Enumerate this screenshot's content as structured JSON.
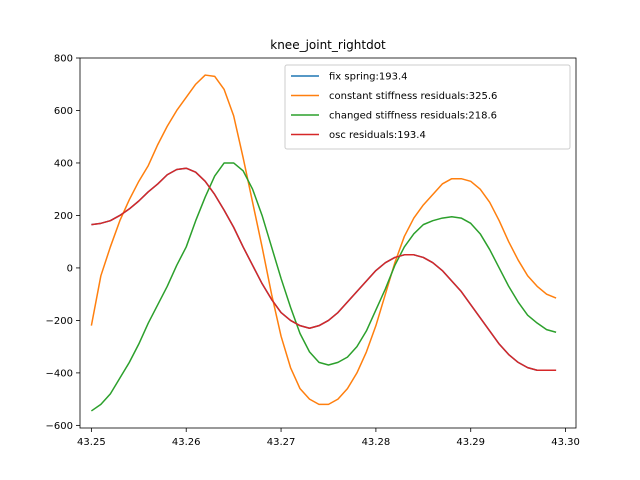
{
  "chart_data": {
    "type": "line",
    "title": "knee_joint_rightdot",
    "xlabel": "",
    "ylabel": "",
    "xlim": [
      43.2488,
      43.3011
    ],
    "ylim": [
      -610,
      800
    ],
    "xticks": [
      43.25,
      43.26,
      43.27,
      43.28,
      43.29,
      43.3
    ],
    "xtick_labels": [
      "43.25",
      "43.26",
      "43.27",
      "43.28",
      "43.29",
      "43.30"
    ],
    "yticks": [
      -600,
      -400,
      -200,
      0,
      200,
      400,
      600,
      800
    ],
    "ytick_labels": [
      "−600",
      "−400",
      "−200",
      "0",
      "200",
      "400",
      "600",
      "800"
    ],
    "grid": false,
    "legend_position": "top-right",
    "x": [
      43.25,
      43.251,
      43.252,
      43.253,
      43.254,
      43.255,
      43.256,
      43.257,
      43.258,
      43.259,
      43.26,
      43.261,
      43.262,
      43.263,
      43.264,
      43.265,
      43.266,
      43.267,
      43.268,
      43.269,
      43.27,
      43.271,
      43.272,
      43.273,
      43.274,
      43.275,
      43.276,
      43.277,
      43.278,
      43.279,
      43.28,
      43.281,
      43.282,
      43.283,
      43.284,
      43.285,
      43.286,
      43.287,
      43.288,
      43.289,
      43.29,
      43.291,
      43.292,
      43.293,
      43.294,
      43.295,
      43.296,
      43.297,
      43.298,
      43.299
    ],
    "series": [
      {
        "name": "fix spring:193.4",
        "color": "#1f77b4",
        "values": [
          165,
          170,
          180,
          200,
          225,
          255,
          290,
          320,
          355,
          375,
          380,
          365,
          330,
          280,
          220,
          155,
          80,
          10,
          -60,
          -120,
          -170,
          -200,
          -220,
          -230,
          -220,
          -200,
          -170,
          -130,
          -90,
          -50,
          -10,
          20,
          40,
          50,
          50,
          40,
          20,
          -10,
          -50,
          -90,
          -140,
          -190,
          -240,
          -290,
          -330,
          -360,
          -380,
          -390,
          -390,
          -390
        ]
      },
      {
        "name": "constant stiffness residuals:325.6",
        "color": "#ff7f0e",
        "values": [
          -220,
          -30,
          80,
          180,
          260,
          330,
          390,
          470,
          540,
          600,
          650,
          700,
          735,
          730,
          680,
          580,
          420,
          250,
          80,
          -100,
          -260,
          -380,
          -460,
          -500,
          -520,
          -520,
          -500,
          -460,
          -400,
          -320,
          -220,
          -100,
          20,
          120,
          190,
          240,
          280,
          320,
          340,
          340,
          330,
          300,
          250,
          180,
          100,
          30,
          -30,
          -70,
          -100,
          -115
        ]
      },
      {
        "name": "changed stiffness residuals:218.6",
        "color": "#2ca02c",
        "values": [
          -545,
          -520,
          -480,
          -420,
          -360,
          -290,
          -210,
          -140,
          -70,
          10,
          80,
          180,
          270,
          350,
          400,
          400,
          370,
          300,
          200,
          80,
          -40,
          -150,
          -250,
          -320,
          -360,
          -370,
          -360,
          -340,
          -300,
          -240,
          -160,
          -80,
          10,
          80,
          130,
          165,
          180,
          190,
          195,
          190,
          170,
          130,
          70,
          0,
          -70,
          -130,
          -180,
          -210,
          -235,
          -245
        ]
      },
      {
        "name": "osc residuals:193.4",
        "color": "#d62728",
        "values": [
          165,
          170,
          180,
          200,
          225,
          255,
          290,
          320,
          355,
          375,
          380,
          365,
          330,
          280,
          220,
          155,
          80,
          10,
          -60,
          -120,
          -170,
          -200,
          -220,
          -230,
          -220,
          -200,
          -170,
          -130,
          -90,
          -50,
          -10,
          20,
          40,
          50,
          50,
          40,
          20,
          -10,
          -50,
          -90,
          -140,
          -190,
          -240,
          -290,
          -330,
          -360,
          -380,
          -390,
          -390,
          -390
        ]
      }
    ]
  }
}
